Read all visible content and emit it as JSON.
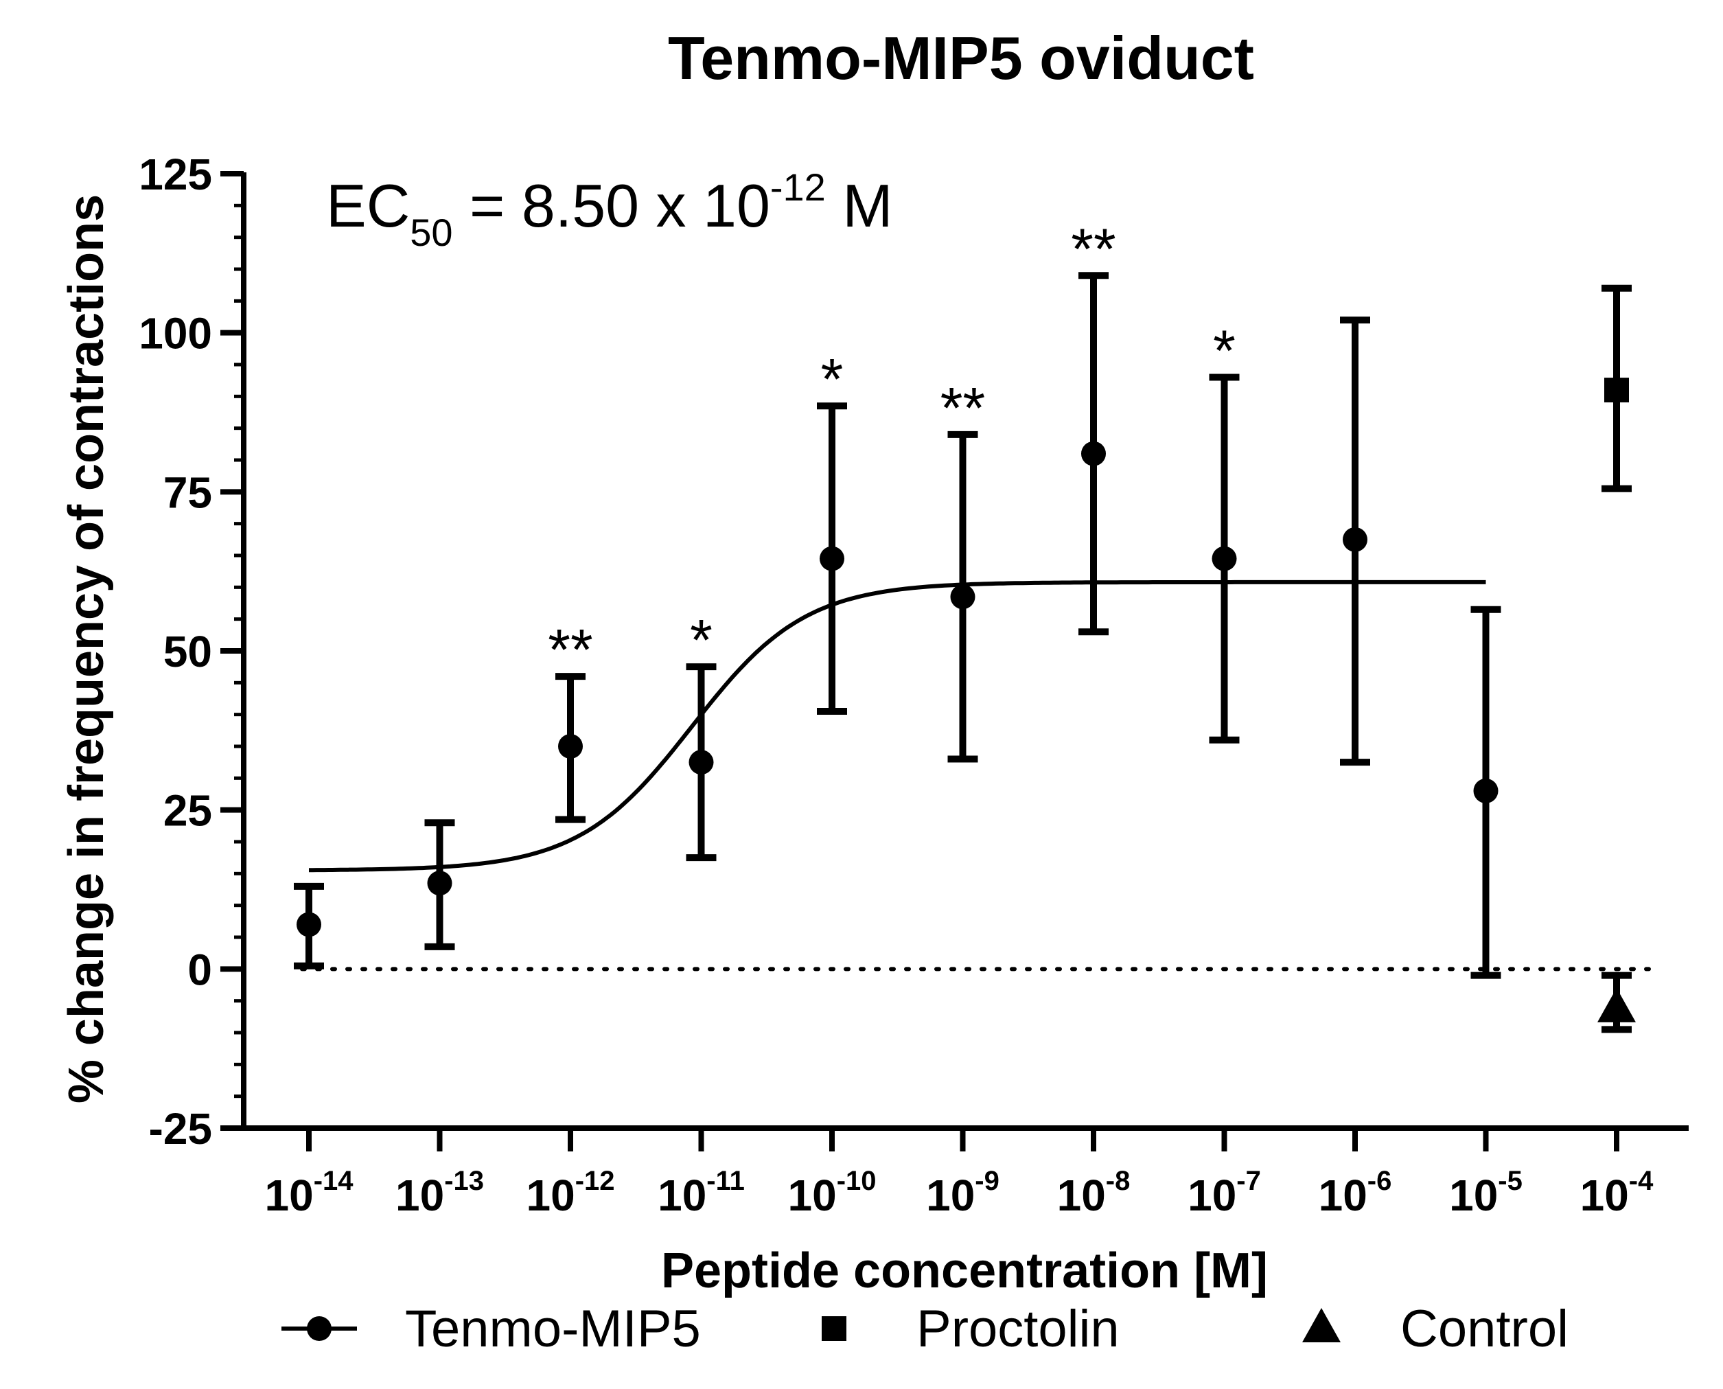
{
  "chart_data": {
    "type": "scatter",
    "title": "Tenmo-MIP5 oviduct",
    "xlabel": "Peptide concentration [M]",
    "ylabel": "% change in frequency of contractions",
    "ylim": [
      -25,
      125
    ],
    "yticks": [
      -25,
      0,
      25,
      50,
      75,
      100,
      125
    ],
    "x_scale": "log10",
    "x_tick_exponents": [
      -14,
      -13,
      -12,
      -11,
      -10,
      -9,
      -8,
      -7,
      -6,
      -5,
      -4
    ],
    "x_tick_base": "10",
    "x_tick_superscripts": [
      "-14",
      "-13",
      "-12",
      "-11",
      "-10",
      "-9",
      "-8",
      "-7",
      "-6",
      "-5",
      "-4"
    ],
    "grid": false,
    "baseline": {
      "y": 0,
      "style": "dotted"
    },
    "legend_position": "bottom",
    "annotation": {
      "prefix": "EC",
      "subscript": "50",
      "middle": " = 8.50 x 10",
      "superscript": "-12",
      "suffix": " M"
    },
    "series": [
      {
        "name": "Tenmo-MIP5",
        "marker": "circle",
        "x": [
          1e-14,
          1e-13,
          1e-12,
          1e-11,
          1e-10,
          1e-09,
          1e-08,
          1e-07,
          1e-06,
          1e-05
        ],
        "y": [
          7,
          13.5,
          35,
          32.5,
          64.5,
          58.5,
          81,
          64.5,
          67.5,
          28
        ],
        "err_low": [
          0.5,
          3.5,
          23.5,
          17.5,
          40.5,
          33,
          53,
          36,
          32.5,
          -1
        ],
        "err_high": [
          13,
          23,
          46,
          47.5,
          88.5,
          84,
          109,
          93,
          102,
          56.5
        ],
        "significance": [
          "",
          "",
          "**",
          "*",
          "*",
          "**",
          "**",
          "*",
          "",
          ""
        ]
      },
      {
        "name": "Proctolin",
        "marker": "square",
        "x": [
          0.0001
        ],
        "y": [
          91
        ],
        "err_low": [
          75.5
        ],
        "err_high": [
          107
        ]
      },
      {
        "name": "Control",
        "marker": "triangle",
        "x": [
          0.0001
        ],
        "y": [
          -6
        ],
        "err_low": [
          -9.5
        ],
        "err_high": [
          -1
        ]
      }
    ],
    "fit_curve": {
      "series": "Tenmo-MIP5",
      "bottom": 15.5,
      "top": 60.8,
      "log_ec50": -11.07,
      "x_range": [
        1e-14,
        1e-05
      ]
    }
  }
}
